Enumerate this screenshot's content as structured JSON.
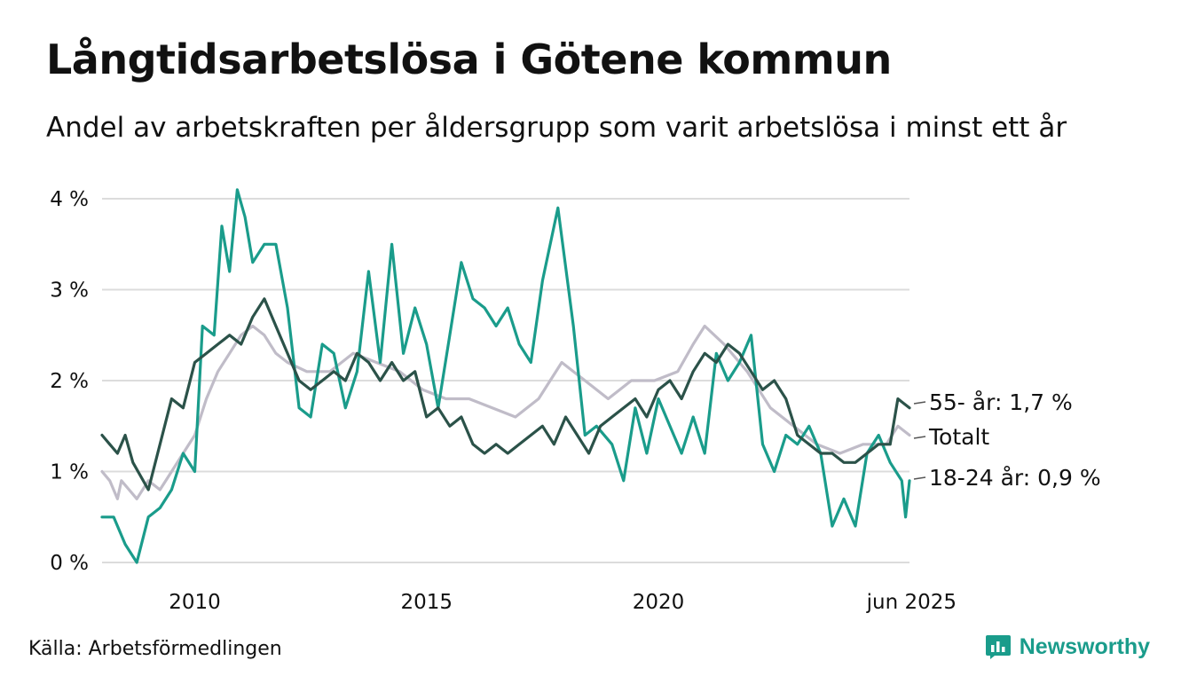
{
  "header": {
    "title": "Långtidsarbetslösa i Götene kommun",
    "subtitle": "Andel av arbetskraften per åldersgrupp som varit arbetslösa i minst ett år"
  },
  "footer": {
    "source": "Källa: Arbetsförmedlingen",
    "brand": "Newsworthy",
    "brand_color": "#1a9c8b"
  },
  "chart_data": {
    "type": "line",
    "xlim": [
      "2008-01",
      "2025-06"
    ],
    "ylim": [
      0,
      4.2
    ],
    "grid": true,
    "x_ticks": [
      {
        "x": "2010-01",
        "label": "2010"
      },
      {
        "x": "2015-01",
        "label": "2015"
      },
      {
        "x": "2020-01",
        "label": "2020"
      },
      {
        "x": "2025-06",
        "label": "jun 2025"
      }
    ],
    "y_ticks": [
      {
        "value": 0,
        "label": "0 %"
      },
      {
        "value": 1,
        "label": "1 %"
      },
      {
        "value": 2,
        "label": "2 %"
      },
      {
        "value": 3,
        "label": "3 %"
      },
      {
        "value": 4,
        "label": "4 %"
      }
    ],
    "series": [
      {
        "name": "Totalt",
        "label": "Totalt",
        "color": "#c0bcc8",
        "points": [
          [
            "2008-01",
            1.0
          ],
          [
            "2008-03",
            0.9
          ],
          [
            "2008-05",
            0.7
          ],
          [
            "2008-06",
            0.9
          ],
          [
            "2008-08",
            0.8
          ],
          [
            "2008-10",
            0.7
          ],
          [
            "2009-01",
            0.9
          ],
          [
            "2009-04",
            0.8
          ],
          [
            "2009-07",
            1.0
          ],
          [
            "2009-10",
            1.2
          ],
          [
            "2010-01",
            1.4
          ],
          [
            "2010-04",
            1.8
          ],
          [
            "2010-07",
            2.1
          ],
          [
            "2010-10",
            2.3
          ],
          [
            "2011-01",
            2.5
          ],
          [
            "2011-04",
            2.6
          ],
          [
            "2011-07",
            2.5
          ],
          [
            "2011-10",
            2.3
          ],
          [
            "2012-01",
            2.2
          ],
          [
            "2012-06",
            2.1
          ],
          [
            "2012-12",
            2.1
          ],
          [
            "2013-06",
            2.3
          ],
          [
            "2013-12",
            2.2
          ],
          [
            "2014-06",
            2.1
          ],
          [
            "2014-12",
            1.9
          ],
          [
            "2015-06",
            1.8
          ],
          [
            "2015-12",
            1.8
          ],
          [
            "2016-06",
            1.7
          ],
          [
            "2016-12",
            1.6
          ],
          [
            "2017-06",
            1.8
          ],
          [
            "2017-12",
            2.2
          ],
          [
            "2018-06",
            2.0
          ],
          [
            "2018-12",
            1.8
          ],
          [
            "2019-06",
            2.0
          ],
          [
            "2019-12",
            2.0
          ],
          [
            "2020-06",
            2.1
          ],
          [
            "2020-10",
            2.4
          ],
          [
            "2021-01",
            2.6
          ],
          [
            "2021-06",
            2.4
          ],
          [
            "2021-12",
            2.1
          ],
          [
            "2022-06",
            1.7
          ],
          [
            "2022-12",
            1.5
          ],
          [
            "2023-06",
            1.3
          ],
          [
            "2023-12",
            1.2
          ],
          [
            "2024-06",
            1.3
          ],
          [
            "2024-12",
            1.3
          ],
          [
            "2025-03",
            1.5
          ],
          [
            "2025-06",
            1.4
          ]
        ]
      },
      {
        "name": "18-24 år",
        "label": "18-24 år: 0,9 %",
        "color": "#1a9c8b",
        "points": [
          [
            "2008-01",
            0.5
          ],
          [
            "2008-04",
            0.5
          ],
          [
            "2008-07",
            0.2
          ],
          [
            "2008-10",
            0.0
          ],
          [
            "2009-01",
            0.5
          ],
          [
            "2009-04",
            0.6
          ],
          [
            "2009-07",
            0.8
          ],
          [
            "2009-10",
            1.2
          ],
          [
            "2010-01",
            1.0
          ],
          [
            "2010-03",
            2.6
          ],
          [
            "2010-06",
            2.5
          ],
          [
            "2010-08",
            3.7
          ],
          [
            "2010-10",
            3.2
          ],
          [
            "2010-12",
            4.1
          ],
          [
            "2011-02",
            3.8
          ],
          [
            "2011-04",
            3.3
          ],
          [
            "2011-07",
            3.5
          ],
          [
            "2011-10",
            3.5
          ],
          [
            "2012-01",
            2.8
          ],
          [
            "2012-04",
            1.7
          ],
          [
            "2012-07",
            1.6
          ],
          [
            "2012-10",
            2.4
          ],
          [
            "2013-01",
            2.3
          ],
          [
            "2013-04",
            1.7
          ],
          [
            "2013-07",
            2.1
          ],
          [
            "2013-10",
            3.2
          ],
          [
            "2014-01",
            2.2
          ],
          [
            "2014-04",
            3.5
          ],
          [
            "2014-07",
            2.3
          ],
          [
            "2014-10",
            2.8
          ],
          [
            "2015-01",
            2.4
          ],
          [
            "2015-04",
            1.7
          ],
          [
            "2015-07",
            2.5
          ],
          [
            "2015-10",
            3.3
          ],
          [
            "2016-01",
            2.9
          ],
          [
            "2016-04",
            2.8
          ],
          [
            "2016-07",
            2.6
          ],
          [
            "2016-10",
            2.8
          ],
          [
            "2017-01",
            2.4
          ],
          [
            "2017-04",
            2.2
          ],
          [
            "2017-07",
            3.1
          ],
          [
            "2017-11",
            3.9
          ],
          [
            "2018-03",
            2.6
          ],
          [
            "2018-06",
            1.4
          ],
          [
            "2018-09",
            1.5
          ],
          [
            "2019-01",
            1.3
          ],
          [
            "2019-04",
            0.9
          ],
          [
            "2019-07",
            1.7
          ],
          [
            "2019-10",
            1.2
          ],
          [
            "2020-01",
            1.8
          ],
          [
            "2020-04",
            1.5
          ],
          [
            "2020-07",
            1.2
          ],
          [
            "2020-10",
            1.6
          ],
          [
            "2021-01",
            1.2
          ],
          [
            "2021-04",
            2.3
          ],
          [
            "2021-07",
            2.0
          ],
          [
            "2021-10",
            2.2
          ],
          [
            "2022-01",
            2.5
          ],
          [
            "2022-04",
            1.3
          ],
          [
            "2022-07",
            1.0
          ],
          [
            "2022-10",
            1.4
          ],
          [
            "2023-01",
            1.3
          ],
          [
            "2023-04",
            1.5
          ],
          [
            "2023-07",
            1.2
          ],
          [
            "2023-10",
            0.4
          ],
          [
            "2024-01",
            0.7
          ],
          [
            "2024-04",
            0.4
          ],
          [
            "2024-07",
            1.2
          ],
          [
            "2024-10",
            1.4
          ],
          [
            "2025-01",
            1.1
          ],
          [
            "2025-04",
            0.9
          ],
          [
            "2025-05",
            0.5
          ],
          [
            "2025-06",
            0.9
          ]
        ]
      },
      {
        "name": "55- år",
        "label": "55- år: 1,7 %",
        "color": "#2b5249",
        "points": [
          [
            "2008-01",
            1.4
          ],
          [
            "2008-03",
            1.3
          ],
          [
            "2008-05",
            1.2
          ],
          [
            "2008-07",
            1.4
          ],
          [
            "2008-09",
            1.1
          ],
          [
            "2009-01",
            0.8
          ],
          [
            "2009-04",
            1.3
          ],
          [
            "2009-07",
            1.8
          ],
          [
            "2009-10",
            1.7
          ],
          [
            "2010-01",
            2.2
          ],
          [
            "2010-04",
            2.3
          ],
          [
            "2010-07",
            2.4
          ],
          [
            "2010-10",
            2.5
          ],
          [
            "2011-01",
            2.4
          ],
          [
            "2011-04",
            2.7
          ],
          [
            "2011-07",
            2.9
          ],
          [
            "2011-10",
            2.6
          ],
          [
            "2012-01",
            2.3
          ],
          [
            "2012-04",
            2.0
          ],
          [
            "2012-07",
            1.9
          ],
          [
            "2012-10",
            2.0
          ],
          [
            "2013-01",
            2.1
          ],
          [
            "2013-04",
            2.0
          ],
          [
            "2013-07",
            2.3
          ],
          [
            "2013-10",
            2.2
          ],
          [
            "2014-01",
            2.0
          ],
          [
            "2014-04",
            2.2
          ],
          [
            "2014-07",
            2.0
          ],
          [
            "2014-10",
            2.1
          ],
          [
            "2015-01",
            1.6
          ],
          [
            "2015-04",
            1.7
          ],
          [
            "2015-07",
            1.5
          ],
          [
            "2015-10",
            1.6
          ],
          [
            "2016-01",
            1.3
          ],
          [
            "2016-04",
            1.2
          ],
          [
            "2016-07",
            1.3
          ],
          [
            "2016-10",
            1.2
          ],
          [
            "2017-01",
            1.3
          ],
          [
            "2017-04",
            1.4
          ],
          [
            "2017-07",
            1.5
          ],
          [
            "2017-10",
            1.3
          ],
          [
            "2018-01",
            1.6
          ],
          [
            "2018-04",
            1.4
          ],
          [
            "2018-07",
            1.2
          ],
          [
            "2018-10",
            1.5
          ],
          [
            "2019-01",
            1.6
          ],
          [
            "2019-04",
            1.7
          ],
          [
            "2019-07",
            1.8
          ],
          [
            "2019-10",
            1.6
          ],
          [
            "2020-01",
            1.9
          ],
          [
            "2020-04",
            2.0
          ],
          [
            "2020-07",
            1.8
          ],
          [
            "2020-10",
            2.1
          ],
          [
            "2021-01",
            2.3
          ],
          [
            "2021-04",
            2.2
          ],
          [
            "2021-07",
            2.4
          ],
          [
            "2021-10",
            2.3
          ],
          [
            "2022-01",
            2.1
          ],
          [
            "2022-04",
            1.9
          ],
          [
            "2022-07",
            2.0
          ],
          [
            "2022-10",
            1.8
          ],
          [
            "2023-01",
            1.4
          ],
          [
            "2023-04",
            1.3
          ],
          [
            "2023-07",
            1.2
          ],
          [
            "2023-10",
            1.2
          ],
          [
            "2024-01",
            1.1
          ],
          [
            "2024-04",
            1.1
          ],
          [
            "2024-07",
            1.2
          ],
          [
            "2024-10",
            1.3
          ],
          [
            "2025-01",
            1.3
          ],
          [
            "2025-03",
            1.8
          ],
          [
            "2025-06",
            1.7
          ]
        ]
      }
    ]
  }
}
